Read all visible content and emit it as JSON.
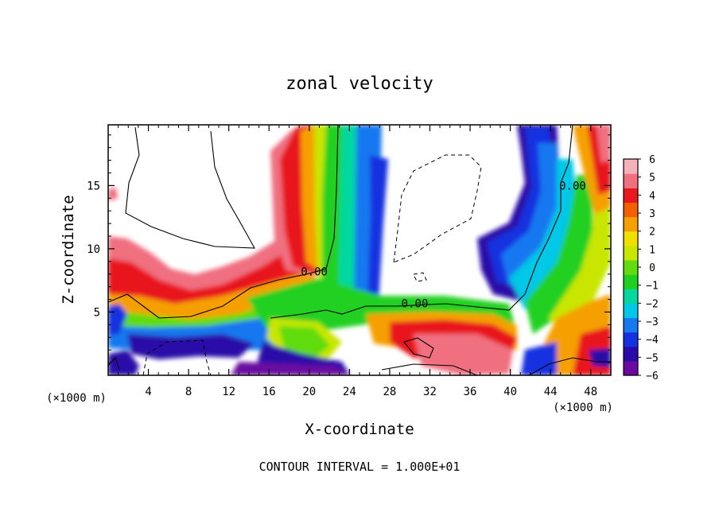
{
  "chart_data": {
    "type": "heatmap",
    "title": "zonal velocity",
    "xlabel": "X-coordinate",
    "ylabel": "Z-coordinate",
    "x_unit": "(×1000 m)",
    "y_unit": "(×1000 m)",
    "xlim": [
      0,
      50
    ],
    "ylim": [
      0,
      19.8
    ],
    "x_ticks": [
      4,
      8,
      12,
      16,
      20,
      24,
      28,
      32,
      36,
      40,
      44,
      48
    ],
    "y_ticks": [
      5,
      10,
      15
    ],
    "colorbar": {
      "ticks": [
        6,
        5,
        4,
        3,
        2,
        1,
        0,
        -1,
        -2,
        -3,
        -4,
        -5,
        -6
      ],
      "min": -6,
      "max": 6,
      "colors": [
        "#6a0aa0",
        "#2a0aa8",
        "#1530e0",
        "#1878f0",
        "#00c8e6",
        "#00d8a0",
        "#20d020",
        "#60dc10",
        "#c8e600",
        "#f0e000",
        "#f5a000",
        "#f26000",
        "#e8181c",
        "#f07080",
        "#f5b0b8"
      ]
    },
    "contour_labels": [
      {
        "text": "0.00",
        "x": 20.5,
        "z": 8.0
      },
      {
        "text": "0.00",
        "x": 30.5,
        "z": 5.5
      },
      {
        "text": "0.00",
        "x": 46.2,
        "z": 14.8
      }
    ],
    "footer": "CONTOUR INTERVAL = 1.000E+01"
  }
}
